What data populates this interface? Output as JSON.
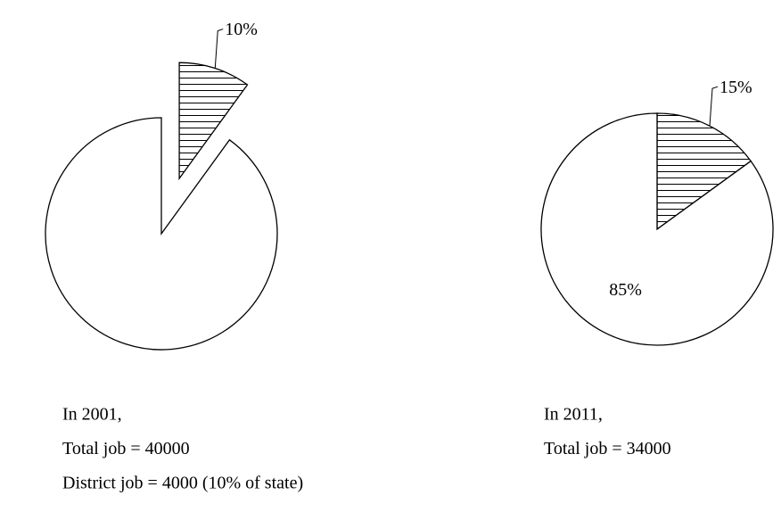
{
  "chart_data": [
    {
      "type": "pie",
      "values": [
        10,
        90
      ],
      "value_labels": [
        "10%",
        null
      ],
      "explode": [
        true,
        false
      ],
      "hatch": [
        true,
        false
      ],
      "caption": [
        "In 2001,",
        "Total job = 40000",
        "District job = 4000 (10% of state)"
      ]
    },
    {
      "type": "pie",
      "values": [
        15,
        85
      ],
      "value_labels": [
        "15%",
        "85%"
      ],
      "explode": [
        false,
        false
      ],
      "hatch": [
        true,
        false
      ],
      "caption": [
        "In 2011,",
        "Total job = 34000"
      ]
    }
  ]
}
